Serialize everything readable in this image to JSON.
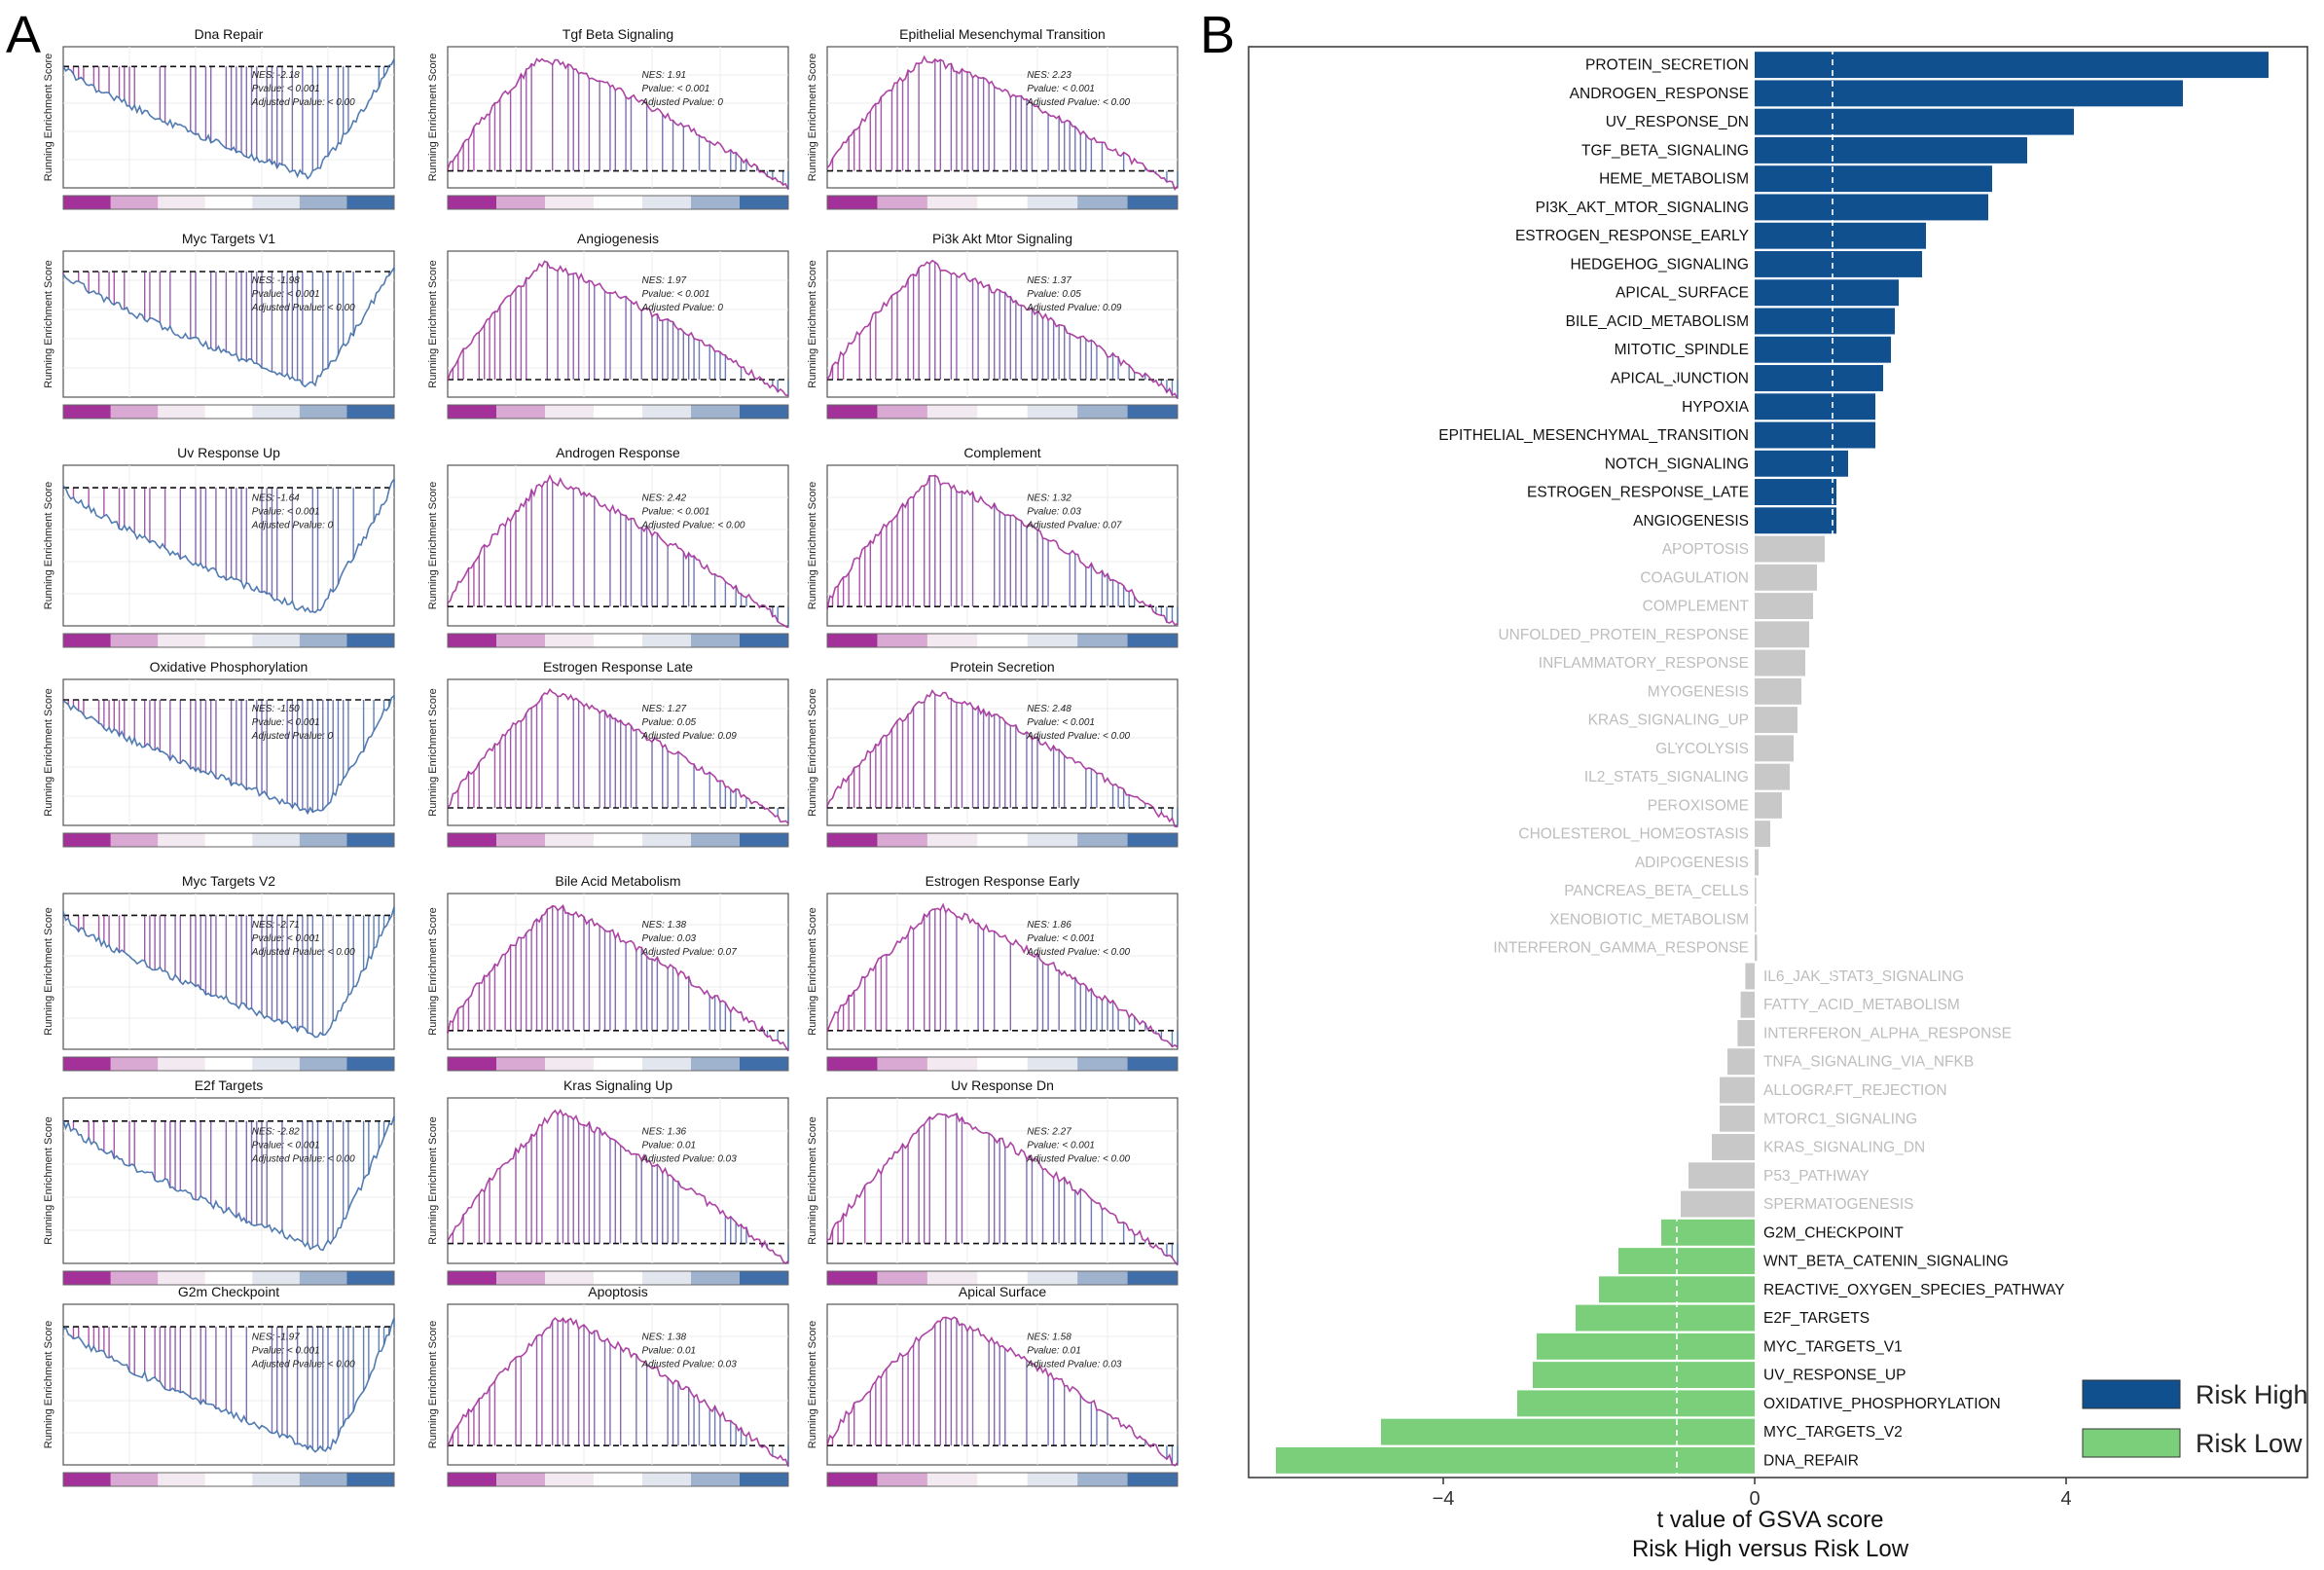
{
  "panel_labels": {
    "a": "A",
    "b": "B"
  },
  "colors": {
    "pos": "#a4319a",
    "neg": "#3f6ea8",
    "risk_high": "#10508f",
    "risk_low": "#7bcf7b",
    "grey": "#c8c8c8",
    "grey_text": "#bdbdbd"
  },
  "chart_data": [
    {
      "type": "line",
      "title": "Panel A: GSEA enrichment plots",
      "ylabel": "Running Enrichment Score",
      "stat_labels": {
        "nes": "NES:",
        "pvalue": "Pvalue:",
        "adj": "Adjusted Pvalue:"
      },
      "plots": [
        {
          "title": "Dna Repair",
          "nes": "-2.18",
          "pvalue": "< 0.001",
          "adj": "< 0.00"
        },
        {
          "title": "Tgf Beta Signaling",
          "nes": "1.91",
          "pvalue": "< 0.001",
          "adj": "0"
        },
        {
          "title": "Epithelial Mesenchymal Transition",
          "nes": "2.23",
          "pvalue": "< 0.001",
          "adj": "< 0.00"
        },
        {
          "title": "Myc Targets V1",
          "nes": "-1.98",
          "pvalue": "< 0.001",
          "adj": "< 0.00"
        },
        {
          "title": "Angiogenesis",
          "nes": "1.97",
          "pvalue": "< 0.001",
          "adj": "0"
        },
        {
          "title": "Pi3k Akt Mtor Signaling",
          "nes": "1.37",
          "pvalue": "0.05",
          "adj": "0.09"
        },
        {
          "title": "Uv Response Up",
          "nes": "-1.64",
          "pvalue": "< 0.001",
          "adj": "0"
        },
        {
          "title": "Androgen Response",
          "nes": "2.42",
          "pvalue": "< 0.001",
          "adj": "< 0.00"
        },
        {
          "title": "Complement",
          "nes": "1.32",
          "pvalue": "0.03",
          "adj": "0.07"
        },
        {
          "title": "Oxidative Phosphorylation",
          "nes": "-1.50",
          "pvalue": "< 0.001",
          "adj": "0"
        },
        {
          "title": "Estrogen Response Late",
          "nes": "1.27",
          "pvalue": "0.05",
          "adj": "0.09"
        },
        {
          "title": "Protein Secretion",
          "nes": "2.48",
          "pvalue": "< 0.001",
          "adj": "< 0.00"
        },
        {
          "title": "Myc Targets V2",
          "nes": "-2.71",
          "pvalue": "< 0.001",
          "adj": "< 0.00"
        },
        {
          "title": "Bile Acid Metabolism",
          "nes": "1.38",
          "pvalue": "0.03",
          "adj": "0.07"
        },
        {
          "title": "Estrogen Response Early",
          "nes": "1.86",
          "pvalue": "< 0.001",
          "adj": "< 0.00"
        },
        {
          "title": "E2f Targets",
          "nes": "-2.82",
          "pvalue": "< 0.001",
          "adj": "< 0.00"
        },
        {
          "title": "Kras Signaling Up",
          "nes": "1.36",
          "pvalue": "0.01",
          "adj": "0.03"
        },
        {
          "title": "Uv Response Dn",
          "nes": "2.27",
          "pvalue": "< 0.001",
          "adj": "< 0.00"
        },
        {
          "title": "G2m Checkpoint",
          "nes": "-1.97",
          "pvalue": "< 0.001",
          "adj": "< 0.00"
        },
        {
          "title": "Apoptosis",
          "nes": "1.38",
          "pvalue": "0.01",
          "adj": "0.03"
        },
        {
          "title": "Apical Surface",
          "nes": "1.58",
          "pvalue": "0.01",
          "adj": "0.03"
        }
      ]
    },
    {
      "type": "bar",
      "title": "Panel B: GSVA t values",
      "xlabel_line1": "t value of GSVA score",
      "xlabel_line2": "Risk High versus Risk Low",
      "xlim": [
        -6.5,
        7.1
      ],
      "xticks": [
        -4,
        0,
        4
      ],
      "xtick_labels": [
        "−4",
        "0",
        "4"
      ],
      "threshold": 1.0,
      "legend": {
        "position": "bottom-right",
        "high": "Risk High",
        "low": "Risk Low"
      },
      "categories": [
        "PROTEIN_SECRETION",
        "ANDROGEN_RESPONSE",
        "UV_RESPONSE_DN",
        "TGF_BETA_SIGNALING",
        "HEME_METABOLISM",
        "PI3K_AKT_MTOR_SIGNALING",
        "ESTROGEN_RESPONSE_EARLY",
        "HEDGEHOG_SIGNALING",
        "APICAL_SURFACE",
        "BILE_ACID_METABOLISM",
        "MITOTIC_SPINDLE",
        "APICAL_JUNCTION",
        "HYPOXIA",
        "EPITHELIAL_MESENCHYMAL_TRANSITION",
        "NOTCH_SIGNALING",
        "ESTROGEN_RESPONSE_LATE",
        "ANGIOGENESIS",
        "APOPTOSIS",
        "COAGULATION",
        "COMPLEMENT",
        "UNFOLDED_PROTEIN_RESPONSE",
        "INFLAMMATORY_RESPONSE",
        "MYOGENESIS",
        "KRAS_SIGNALING_UP",
        "GLYCOLYSIS",
        "IL2_STAT5_SIGNALING",
        "PEROXISOME",
        "CHOLESTEROL_HOMEOSTASIS",
        "ADIPOGENESIS",
        "PANCREAS_BETA_CELLS",
        "XENOBIOTIC_METABOLISM",
        "INTERFERON_GAMMA_RESPONSE",
        "IL6_JAK_STAT3_SIGNALING",
        "FATTY_ACID_METABOLISM",
        "INTERFERON_ALPHA_RESPONSE",
        "TNFA_SIGNALING_VIA_NFKB",
        "ALLOGRAFT_REJECTION",
        "MTORC1_SIGNALING",
        "KRAS_SIGNALING_DN",
        "P53_PATHWAY",
        "SPERMATOGENESIS",
        "G2M_CHECKPOINT",
        "WNT_BETA_CATENIN_SIGNALING",
        "REACTIVE_OXYGEN_SPECIES_PATHWAY",
        "E2F_TARGETS",
        "MYC_TARGETS_V1",
        "UV_RESPONSE_UP",
        "OXIDATIVE_PHOSPHORYLATION",
        "MYC_TARGETS_V2",
        "DNA_REPAIR"
      ],
      "values": [
        6.6,
        5.5,
        4.1,
        3.5,
        3.05,
        3.0,
        2.2,
        2.15,
        1.85,
        1.8,
        1.75,
        1.65,
        1.55,
        1.55,
        1.2,
        1.05,
        1.05,
        0.9,
        0.8,
        0.75,
        0.7,
        0.65,
        0.6,
        0.55,
        0.5,
        0.45,
        0.35,
        0.2,
        0.05,
        0.02,
        0.02,
        0.03,
        -0.12,
        -0.18,
        -0.22,
        -0.35,
        -0.45,
        -0.45,
        -0.55,
        -0.85,
        -0.95,
        -1.2,
        -1.75,
        -2.0,
        -2.3,
        -2.8,
        -2.85,
        -3.05,
        -4.8,
        -6.15
      ]
    }
  ]
}
